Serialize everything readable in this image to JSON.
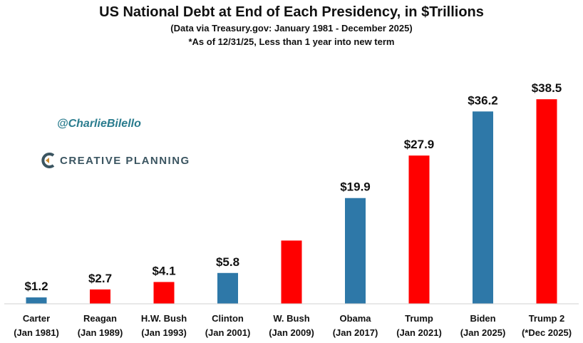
{
  "chart_data": {
    "type": "bar",
    "title": "US National Debt at End of Each Presidency, in $Trillions",
    "subtitle": "(Data via Treasury.gov: January 1981 - December 2025)",
    "note": "*As of 12/31/25, Less than 1 year into new term",
    "xlabel": "",
    "ylabel": "",
    "ylim": [
      0,
      40
    ],
    "grid": false,
    "legend": "none",
    "categories": [
      {
        "name": "Carter",
        "date": "(Jan 1981)"
      },
      {
        "name": "Reagan",
        "date": "(Jan 1989)"
      },
      {
        "name": "H.W. Bush",
        "date": "(Jan 1993)"
      },
      {
        "name": "Clinton",
        "date": "(Jan 2001)"
      },
      {
        "name": "W. Bush",
        "date": "(Jan 2009)"
      },
      {
        "name": "Obama",
        "date": "(Jan 2017)"
      },
      {
        "name": "Trump",
        "date": "(Jan 2021)"
      },
      {
        "name": "Biden",
        "date": "(Jan 2025)"
      },
      {
        "name": "Trump 2",
        "date": "(*Dec 2025)"
      }
    ],
    "values": [
      1.2,
      2.7,
      4.1,
      5.8,
      11.9,
      19.9,
      27.9,
      36.2,
      38.5
    ],
    "value_labels": [
      "$1.2",
      "$2.7",
      "$4.1",
      "$5.8",
      "",
      "$19.9",
      "$27.9",
      "$36.2",
      "$38.5"
    ],
    "party": [
      "D",
      "R",
      "R",
      "D",
      "R",
      "D",
      "R",
      "D",
      "R"
    ],
    "colors": {
      "D": "#2e78a8",
      "R": "#ff0000"
    }
  },
  "overlay": {
    "handle": "@CharlieBilello",
    "brand": "CREATIVE PLANNING",
    "brand_color": "#3b5561",
    "brand_accent": "#c98a2e"
  }
}
